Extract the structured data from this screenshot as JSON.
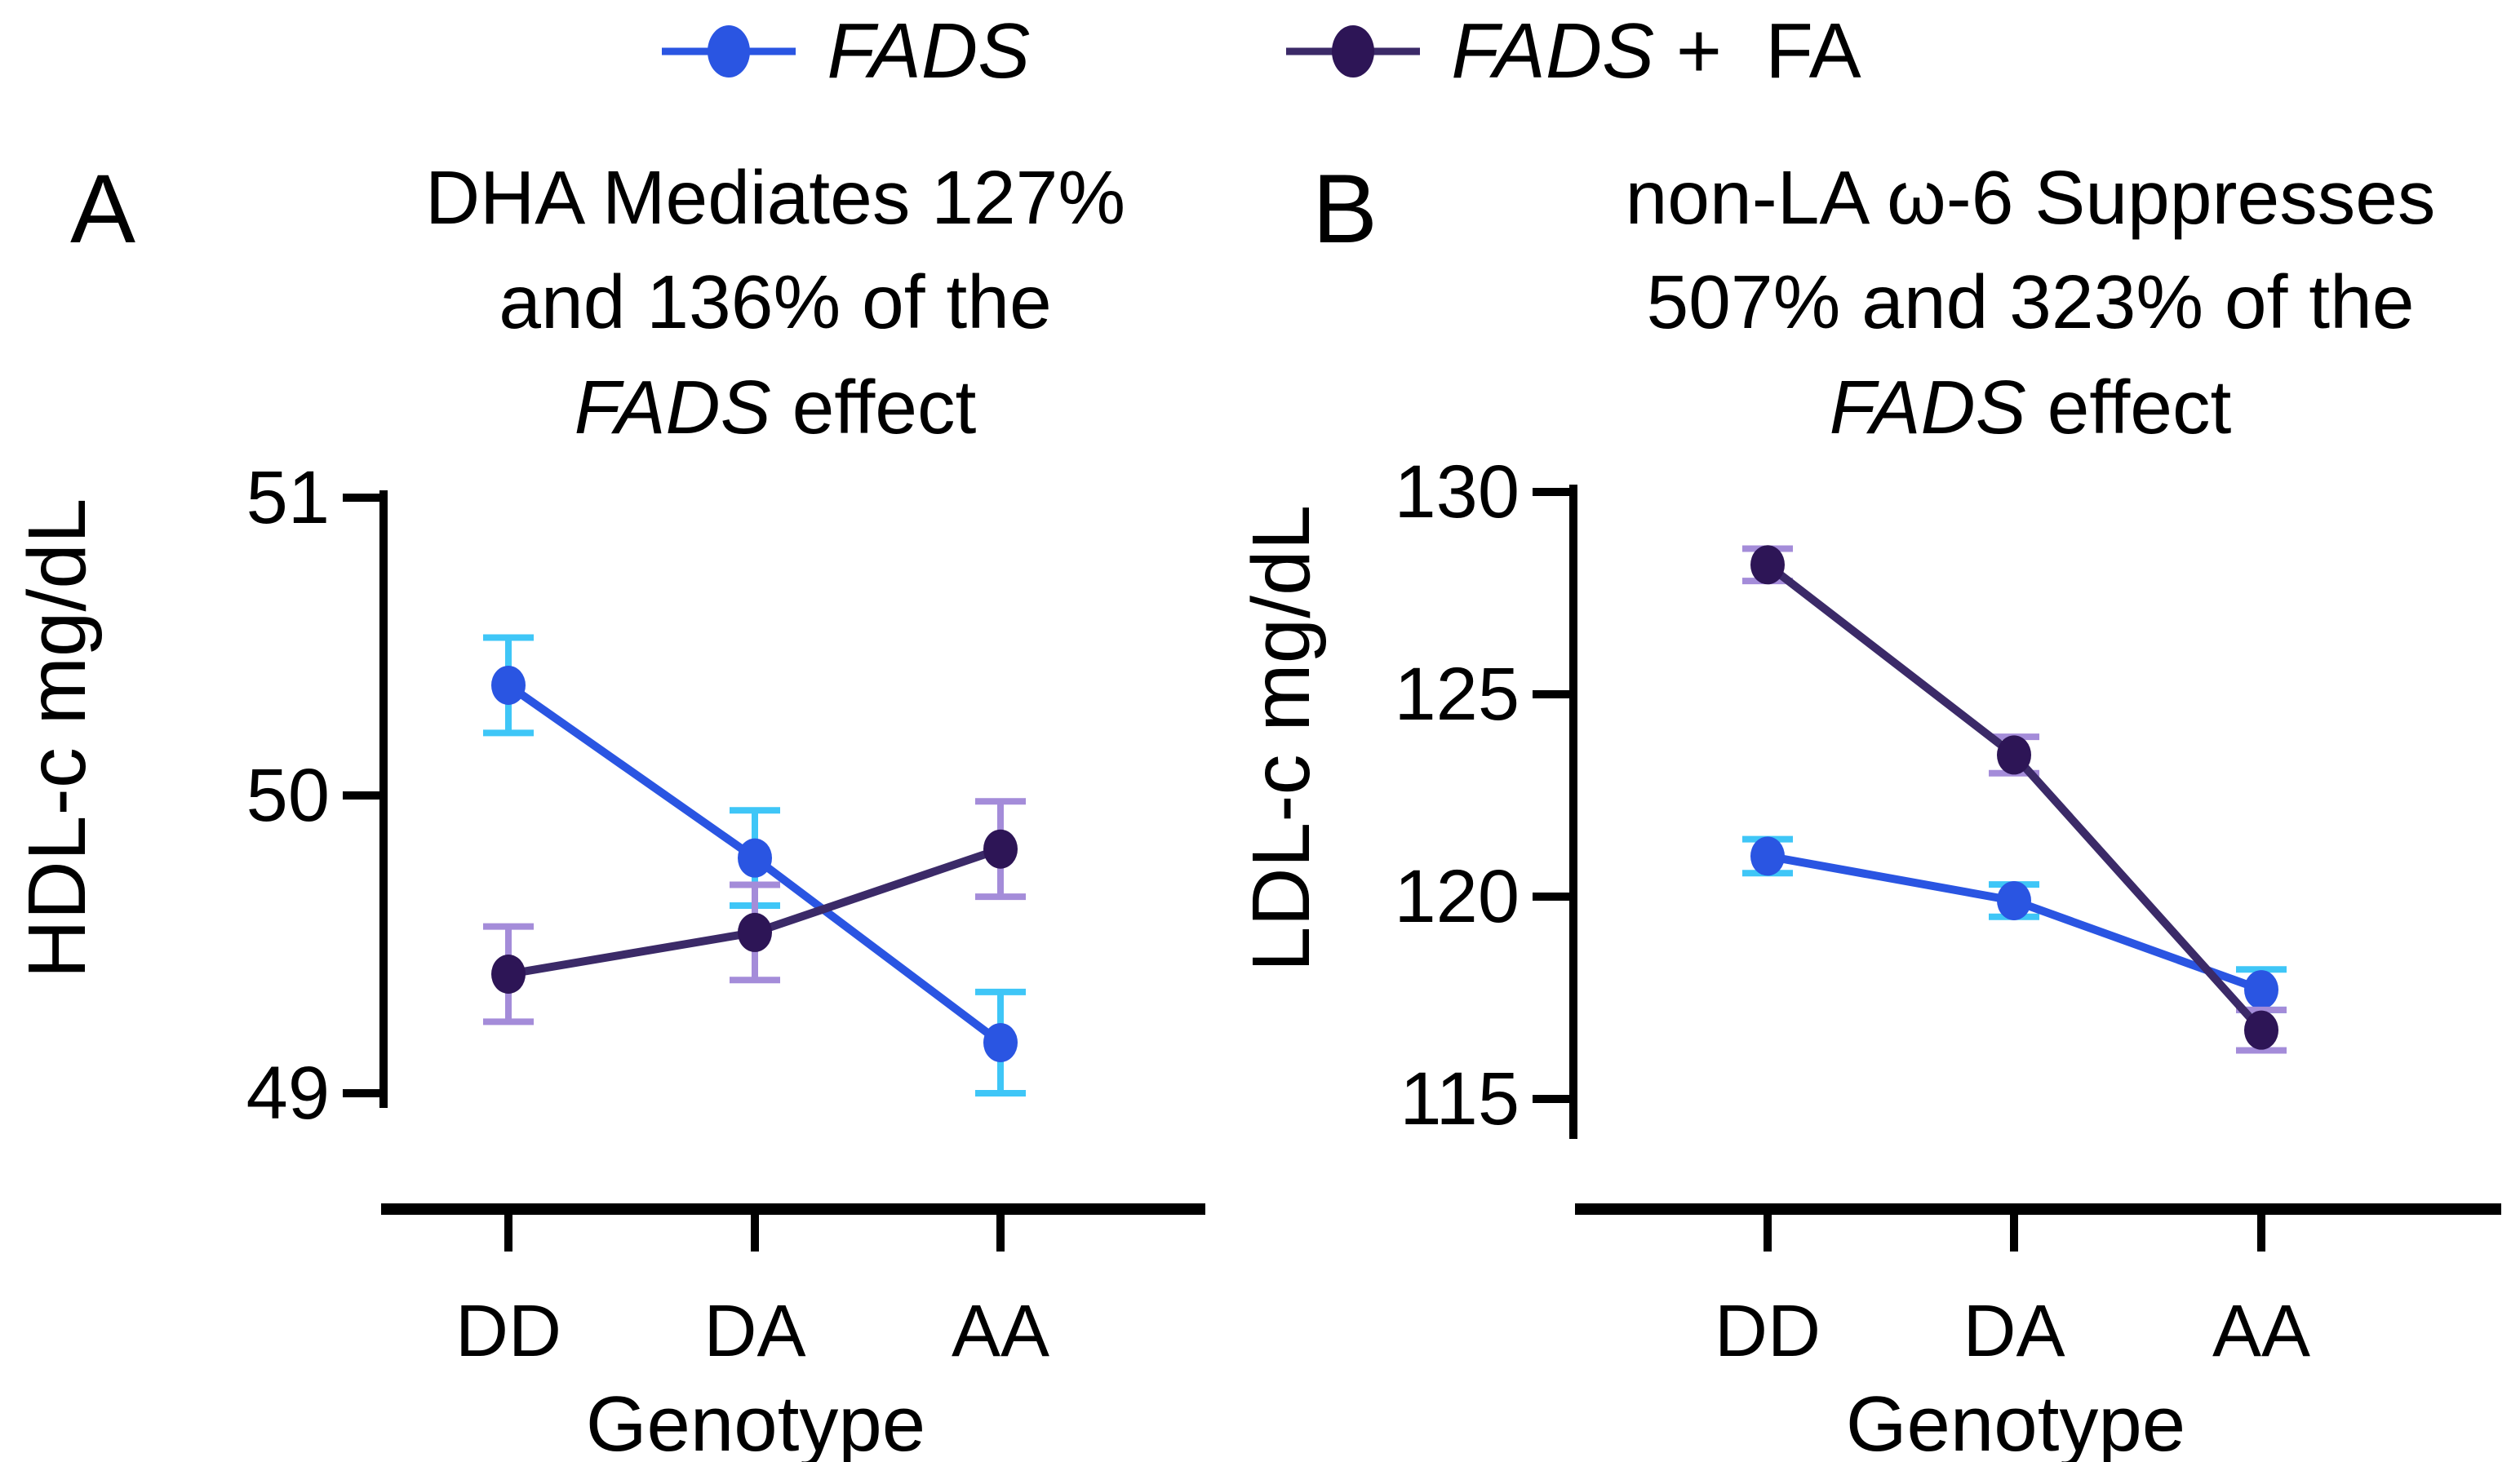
{
  "figure_title": "FADS genotype lipid mediation figure",
  "colors": {
    "fads_line": "#2A55E2",
    "fads_marker": "#2A55E2",
    "fads_error": "#3FC6F7",
    "fadsfa_line": "#3B2A68",
    "fadsfa_marker": "#2D1556",
    "fadsfa_error": "#A48CD9",
    "axis": "#000000",
    "background": "#FFFFFF"
  },
  "legend": {
    "items": [
      {
        "name": "fads",
        "segments": [
          {
            "t": "FADS",
            "i": true
          }
        ],
        "marker_color": "#2A55E2",
        "line_color": "#2A55E2"
      },
      {
        "name": "fads-plus-fa",
        "segments": [
          {
            "t": "FADS",
            "i": true
          },
          {
            "t": " +  FA",
            "i": false
          }
        ],
        "marker_color": "#2D1556",
        "line_color": "#3B2A68"
      }
    ]
  },
  "panels": [
    {
      "label": "A",
      "title_lines": [
        [
          {
            "t": "DHA Mediates 127%",
            "i": false
          }
        ],
        [
          {
            "t": "and 136% of the",
            "i": false
          }
        ],
        [
          {
            "t": "FADS",
            "i": true
          },
          {
            "t": " effect",
            "i": false
          }
        ]
      ]
    },
    {
      "label": "B",
      "title_lines": [
        [
          {
            "t": "non-LA ω-6 Suppresses",
            "i": false
          }
        ],
        [
          {
            "t": "507% and 323% of the",
            "i": false
          }
        ],
        [
          {
            "t": "FADS",
            "i": true
          },
          {
            "t": " effect",
            "i": false
          }
        ]
      ]
    }
  ],
  "chart_data": [
    {
      "type": "line",
      "panel": "A",
      "title": "DHA Mediates 127% and 136% of the FADS effect",
      "xlabel": "Genotype",
      "ylabel": "HDL-c mg/dL",
      "categories": [
        "DD",
        "DA",
        "AA"
      ],
      "ylim": [
        49,
        51
      ],
      "yticks": [
        51,
        50,
        49
      ],
      "grid": false,
      "legend_position": "top",
      "series": [
        {
          "name": "FADS",
          "values": [
            50.37,
            49.79,
            49.17
          ],
          "errors": [
            0.16,
            0.16,
            0.17
          ],
          "marker_color": "#2A55E2",
          "line_color": "#2A55E2",
          "error_color": "#3FC6F7"
        },
        {
          "name": "FADS + FA",
          "values": [
            49.4,
            49.54,
            49.82
          ],
          "errors": [
            0.16,
            0.16,
            0.16
          ],
          "marker_color": "#2D1556",
          "line_color": "#3B2A68",
          "error_color": "#A48CD9"
        }
      ]
    },
    {
      "type": "line",
      "panel": "B",
      "title": "non-LA ω-6 Suppresses 507% and 323% of the FADS effect",
      "xlabel": "Genotype",
      "ylabel": "LDL-c mg/dL",
      "categories": [
        "DD",
        "DA",
        "AA"
      ],
      "ylim": [
        115,
        130
      ],
      "yticks": [
        130,
        125,
        120,
        115
      ],
      "grid": false,
      "legend_position": "top",
      "series": [
        {
          "name": "FADS",
          "values": [
            121.0,
            119.9,
            117.7
          ],
          "errors": [
            0.42,
            0.4,
            0.5
          ],
          "marker_color": "#2A55E2",
          "line_color": "#2A55E2",
          "error_color": "#3FC6F7"
        },
        {
          "name": "FADS + FA",
          "values": [
            128.2,
            123.5,
            116.7
          ],
          "errors": [
            0.4,
            0.45,
            0.5
          ],
          "marker_color": "#2D1556",
          "line_color": "#3B2A68",
          "error_color": "#A48CD9"
        }
      ]
    }
  ]
}
